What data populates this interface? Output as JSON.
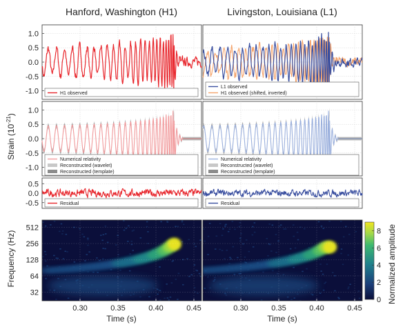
{
  "figure": {
    "col_titles": [
      "Hanford, Washington (H1)",
      "Livingston, Louisiana (L1)"
    ],
    "strain_label": "Strain (10",
    "strain_exp": "-21",
    "strain_close": ")",
    "freq_label": "Frequency (Hz)",
    "time_label": "Time (s)",
    "colorbar_label": "Normalized amplitude"
  },
  "colors": {
    "h1": "#e8262c",
    "l1": "#3a4fa0",
    "h1_shifted": "#f5a46c",
    "nr_h1": "#f19a9c",
    "nr_l1": "#9bb0dd",
    "wavelet": "#c8c8c8",
    "template": "#8c8c8c"
  },
  "chart_data": [
    {
      "type": "line",
      "panel": "observed",
      "detector": "H1",
      "xlim": [
        0.25,
        0.46
      ],
      "ylim": [
        -1.3,
        1.3
      ],
      "yticks": [
        "1.0",
        "0.5",
        "0.0",
        "-0.5",
        "-1.0"
      ],
      "ytick_values": [
        1.0,
        0.5,
        0.0,
        -0.5,
        -1.0
      ],
      "legend": [
        "H1 observed"
      ],
      "grid": true
    },
    {
      "type": "line",
      "panel": "observed",
      "detector": "L1",
      "xlim": [
        0.25,
        0.46
      ],
      "ylim": [
        -1.3,
        1.3
      ],
      "legend": [
        "L1 observed",
        "H1 observed (shifted, inverted)"
      ],
      "grid": true
    },
    {
      "type": "line",
      "panel": "reconstructed",
      "detector": "H1",
      "xlim": [
        0.25,
        0.46
      ],
      "ylim": [
        -1.3,
        1.3
      ],
      "yticks": [
        "1.0",
        "0.5",
        "0.0",
        "-0.5",
        "-1.0"
      ],
      "ytick_values": [
        1.0,
        0.5,
        0.0,
        -0.5,
        -1.0
      ],
      "legend": [
        "Numerical relativity",
        "Reconstructed (wavelet)",
        "Reconstructed (template)"
      ],
      "grid": true
    },
    {
      "type": "line",
      "panel": "reconstructed",
      "detector": "L1",
      "xlim": [
        0.25,
        0.46
      ],
      "ylim": [
        -1.3,
        1.3
      ],
      "legend": [
        "Numerical relativity",
        "Reconstructed (wavelet)",
        "Reconstructed (template)"
      ],
      "grid": true
    },
    {
      "type": "line",
      "panel": "residual",
      "detector": "H1",
      "xlim": [
        0.25,
        0.46
      ],
      "ylim": [
        -0.8,
        0.8
      ],
      "yticks": [
        "0.5",
        "0.0",
        "-0.5"
      ],
      "ytick_values": [
        0.5,
        0.0,
        -0.5
      ],
      "legend": [
        "Residual"
      ],
      "grid": true
    },
    {
      "type": "line",
      "panel": "residual",
      "detector": "L1",
      "xlim": [
        0.25,
        0.46
      ],
      "ylim": [
        -0.8,
        0.8
      ],
      "legend": [
        "Residual"
      ],
      "grid": true
    },
    {
      "type": "heatmap",
      "panel": "spectrogram",
      "detector": "H1",
      "xlim": [
        0.25,
        0.46
      ],
      "xticks": [
        "0.30",
        "0.35",
        "0.40",
        "0.45"
      ],
      "xtick_values": [
        0.3,
        0.35,
        0.4,
        0.45
      ],
      "yscale": "log2",
      "ylim": [
        22,
        700
      ],
      "yticks": [
        "512",
        "256",
        "128",
        "64",
        "32"
      ],
      "ytick_values": [
        512,
        256,
        128,
        64,
        32
      ],
      "chirp_peak_time": 0.425,
      "chirp_peak_freq": 250
    },
    {
      "type": "heatmap",
      "panel": "spectrogram",
      "detector": "L1",
      "xlim": [
        0.25,
        0.46
      ],
      "xticks": [
        "0.30",
        "0.35",
        "0.40",
        "0.45"
      ],
      "xtick_values": [
        0.3,
        0.35,
        0.4,
        0.45
      ],
      "yscale": "log2",
      "ylim": [
        22,
        700
      ],
      "chirp_peak_time": 0.418,
      "chirp_peak_freq": 220
    }
  ],
  "colorbar": {
    "range": [
      0,
      9
    ],
    "ticks": [
      "8",
      "6",
      "4",
      "2",
      "0"
    ],
    "tick_values": [
      8,
      6,
      4,
      2,
      0
    ]
  }
}
